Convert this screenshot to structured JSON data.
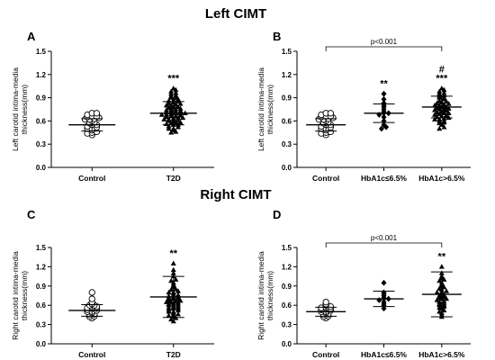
{
  "sections": [
    {
      "title": "Left CIMT"
    },
    {
      "title": "Right CIMT"
    }
  ],
  "chart_data": [
    {
      "panel": "A",
      "type": "scatter",
      "ylabel_line1": "Left carotid intima-media",
      "ylabel_line2": "thickness(mm)",
      "ylim": [
        0,
        1.5
      ],
      "yticks": [
        "0.0",
        "0.3",
        "0.6",
        "0.9",
        "1.2",
        "1.5"
      ],
      "categories": [
        "Control",
        "T2D"
      ],
      "annotations": [
        "",
        "***"
      ],
      "series": [
        {
          "marker": "open-circle",
          "mean": 0.55,
          "sd": 0.08,
          "values": [
            0.42,
            0.44,
            0.45,
            0.46,
            0.48,
            0.5,
            0.5,
            0.52,
            0.53,
            0.55,
            0.55,
            0.57,
            0.58,
            0.6,
            0.62,
            0.62,
            0.63,
            0.64,
            0.65,
            0.66,
            0.66,
            0.68,
            0.7,
            0.7
          ]
        },
        {
          "marker": "filled-triangle",
          "mean": 0.7,
          "sd": 0.15,
          "values": [
            0.45,
            0.46,
            0.48,
            0.5,
            0.5,
            0.52,
            0.53,
            0.55,
            0.55,
            0.56,
            0.57,
            0.58,
            0.58,
            0.6,
            0.6,
            0.61,
            0.62,
            0.62,
            0.63,
            0.64,
            0.64,
            0.65,
            0.66,
            0.66,
            0.67,
            0.68,
            0.68,
            0.69,
            0.7,
            0.7,
            0.7,
            0.71,
            0.72,
            0.72,
            0.73,
            0.74,
            0.75,
            0.75,
            0.76,
            0.77,
            0.78,
            0.78,
            0.8,
            0.8,
            0.81,
            0.82,
            0.83,
            0.84,
            0.85,
            0.86,
            0.87,
            0.88,
            0.9,
            0.9,
            0.92,
            0.93,
            0.95,
            0.96,
            0.98,
            1.0,
            1.02
          ]
        }
      ]
    },
    {
      "panel": "B",
      "type": "scatter",
      "ylabel_line1": "Left carotid intima-media",
      "ylabel_line2": "thickness(mm)",
      "ylim": [
        0,
        1.5
      ],
      "yticks": [
        "0.0",
        "0.3",
        "0.6",
        "0.9",
        "1.2",
        "1.5"
      ],
      "categories": [
        "Control",
        "HbA1c≤6.5%",
        "HbA1c>6.5%"
      ],
      "annotations": [
        "",
        "**",
        "***"
      ],
      "extra_annotation": "#",
      "bracket_label": "p<0.001",
      "series": [
        {
          "marker": "open-circle",
          "mean": 0.55,
          "sd": 0.08,
          "values": [
            0.42,
            0.44,
            0.45,
            0.46,
            0.48,
            0.5,
            0.5,
            0.52,
            0.53,
            0.55,
            0.55,
            0.57,
            0.58,
            0.6,
            0.62,
            0.62,
            0.63,
            0.64,
            0.65,
            0.66,
            0.66,
            0.68,
            0.7,
            0.7
          ]
        },
        {
          "marker": "filled-diamond",
          "mean": 0.7,
          "sd": 0.12,
          "values": [
            0.5,
            0.52,
            0.55,
            0.6,
            0.65,
            0.68,
            0.7,
            0.7,
            0.72,
            0.75,
            0.78,
            0.8,
            0.83,
            0.88,
            0.95
          ]
        },
        {
          "marker": "filled-triangle",
          "mean": 0.78,
          "sd": 0.14,
          "values": [
            0.5,
            0.52,
            0.55,
            0.57,
            0.58,
            0.6,
            0.6,
            0.62,
            0.62,
            0.63,
            0.64,
            0.65,
            0.66,
            0.67,
            0.68,
            0.69,
            0.7,
            0.7,
            0.71,
            0.72,
            0.73,
            0.74,
            0.75,
            0.75,
            0.76,
            0.77,
            0.78,
            0.78,
            0.8,
            0.8,
            0.81,
            0.82,
            0.83,
            0.84,
            0.85,
            0.86,
            0.88,
            0.9,
            0.9,
            0.92,
            0.93,
            0.95,
            0.96,
            0.98,
            1.0,
            1.02
          ]
        }
      ]
    },
    {
      "panel": "C",
      "type": "scatter",
      "ylabel_line1": "Right carotid intima-media",
      "ylabel_line2": "thickness(mm)",
      "ylim": [
        0,
        1.5
      ],
      "yticks": [
        "0.0",
        "0.3",
        "0.6",
        "0.9",
        "1.2",
        "1.5"
      ],
      "categories": [
        "Control",
        "T2D"
      ],
      "annotations": [
        "",
        "**"
      ],
      "series": [
        {
          "marker": "open-circle",
          "mean": 0.52,
          "sd": 0.09,
          "values": [
            0.4,
            0.42,
            0.43,
            0.45,
            0.46,
            0.48,
            0.5,
            0.5,
            0.52,
            0.53,
            0.55,
            0.55,
            0.56,
            0.57,
            0.58,
            0.6,
            0.6,
            0.62,
            0.65,
            0.7,
            0.8
          ]
        },
        {
          "marker": "filled-triangle",
          "mean": 0.73,
          "sd": 0.32,
          "values": [
            0.35,
            0.38,
            0.4,
            0.42,
            0.44,
            0.45,
            0.46,
            0.48,
            0.5,
            0.5,
            0.52,
            0.53,
            0.55,
            0.55,
            0.56,
            0.57,
            0.58,
            0.6,
            0.6,
            0.61,
            0.62,
            0.63,
            0.64,
            0.65,
            0.65,
            0.66,
            0.67,
            0.68,
            0.7,
            0.7,
            0.71,
            0.72,
            0.73,
            0.74,
            0.75,
            0.76,
            0.78,
            0.8,
            0.8,
            0.82,
            0.84,
            0.85,
            0.88,
            0.9,
            0.92,
            0.95,
            0.98,
            1.0,
            1.05,
            1.1,
            1.15,
            1.25
          ]
        }
      ]
    },
    {
      "panel": "D",
      "type": "scatter",
      "ylabel_line1": "Right carotid intima-media",
      "ylabel_line2": "thickness(mm)",
      "ylim": [
        0,
        1.5
      ],
      "yticks": [
        "0.0",
        "0.3",
        "0.6",
        "0.9",
        "1.2",
        "1.5"
      ],
      "categories": [
        "Control",
        "HbA1c≤6.5%",
        "HbA1c>6.5%"
      ],
      "annotations": [
        "",
        "",
        "**"
      ],
      "bracket_label": "p<0.001",
      "series": [
        {
          "marker": "open-circle",
          "mean": 0.5,
          "sd": 0.07,
          "values": [
            0.4,
            0.42,
            0.43,
            0.45,
            0.46,
            0.48,
            0.5,
            0.5,
            0.52,
            0.53,
            0.55,
            0.55,
            0.56,
            0.57,
            0.58,
            0.6,
            0.62,
            0.65
          ]
        },
        {
          "marker": "filled-diamond",
          "mean": 0.7,
          "sd": 0.12,
          "values": [
            0.55,
            0.6,
            0.62,
            0.65,
            0.68,
            0.7,
            0.7,
            0.72,
            0.75,
            0.78,
            0.8,
            0.95
          ]
        },
        {
          "marker": "filled-triangle",
          "mean": 0.77,
          "sd": 0.35,
          "values": [
            0.42,
            0.45,
            0.48,
            0.5,
            0.52,
            0.55,
            0.56,
            0.58,
            0.6,
            0.6,
            0.62,
            0.63,
            0.65,
            0.66,
            0.68,
            0.7,
            0.7,
            0.72,
            0.73,
            0.75,
            0.76,
            0.78,
            0.8,
            0.8,
            0.82,
            0.84,
            0.86,
            0.88,
            0.9,
            0.92,
            0.95,
            0.98,
            1.0,
            1.02,
            1.05,
            1.1,
            1.2
          ]
        }
      ]
    }
  ]
}
